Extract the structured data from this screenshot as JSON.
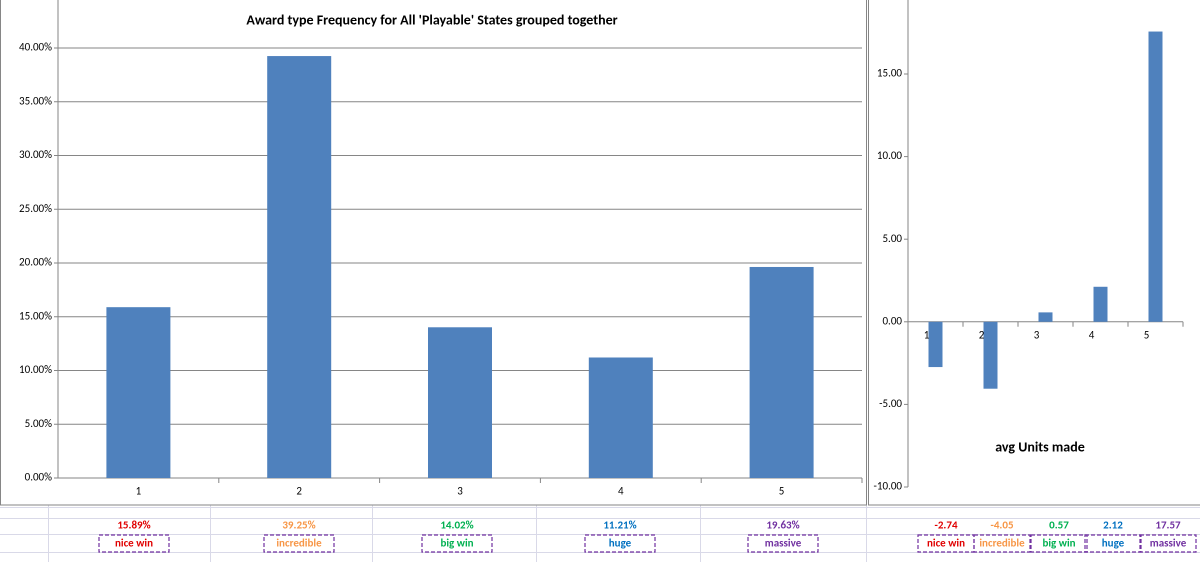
{
  "chart_data": [
    {
      "type": "bar",
      "title": "Award type Frequency for All 'Playable' States grouped together",
      "categories": [
        "1",
        "2",
        "3",
        "4",
        "5"
      ],
      "values": [
        15.89,
        39.25,
        14.02,
        11.21,
        19.63
      ],
      "value_labels": [
        "15.89%",
        "39.25%",
        "14.02%",
        "11.21%",
        "19.63%"
      ],
      "category_names": [
        "nice win",
        "incredible",
        "big win",
        "huge",
        "massive"
      ],
      "label_colors": [
        "#e00000",
        "#f79646",
        "#00b050",
        "#0070c0",
        "#7030a0"
      ],
      "color": "#4f81bd",
      "grid": true,
      "ylim": [
        0,
        40
      ],
      "yticks": [
        {
          "value": 0,
          "label": "0.00%"
        },
        {
          "value": 5,
          "label": "5.00%"
        },
        {
          "value": 10,
          "label": "10.00%"
        },
        {
          "value": 15,
          "label": "15.00%"
        },
        {
          "value": 20,
          "label": "20.00%"
        },
        {
          "value": 25,
          "label": "25.00%"
        },
        {
          "value": 30,
          "label": "30.00%"
        },
        {
          "value": 35,
          "label": "35.00%"
        },
        {
          "value": 40,
          "label": "40.00%"
        }
      ]
    },
    {
      "type": "bar",
      "title": "avg Units made",
      "categories": [
        "1",
        "2",
        "3",
        "4",
        "5"
      ],
      "values": [
        -2.74,
        -4.05,
        0.57,
        2.12,
        17.57
      ],
      "category_names": [
        "nice win",
        "incredible",
        "big win",
        "huge",
        "massive"
      ],
      "label_colors": [
        "#e00000",
        "#f79646",
        "#00b050",
        "#0070c0",
        "#7030a0"
      ],
      "color": "#4f81bd",
      "grid": false,
      "ylim": [
        -10,
        20
      ],
      "yticks": [
        {
          "value": -10,
          "label": "-10.00"
        },
        {
          "value": -5,
          "label": "-5.00"
        },
        {
          "value": 0,
          "label": "0.00"
        },
        {
          "value": 5,
          "label": "5.00"
        },
        {
          "value": 10,
          "label": "10.00"
        },
        {
          "value": 15,
          "label": "15.00"
        }
      ]
    }
  ]
}
